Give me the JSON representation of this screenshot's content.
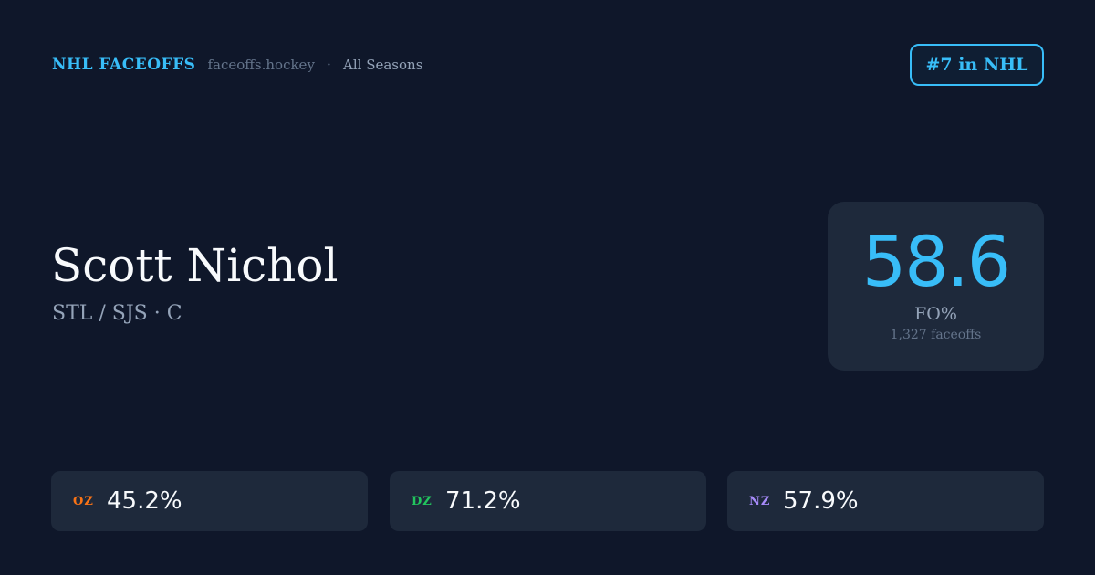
{
  "header": {
    "brand": "NHL FACEOFFS",
    "site": "faceoffs.hockey",
    "separator": "·",
    "season": "All Seasons",
    "rank": "#7 in NHL"
  },
  "player": {
    "name": "Scott Nichol",
    "subtitle": "STL / SJS · C"
  },
  "summary": {
    "value": "58.6",
    "label": "FO%",
    "count": "1,327 faceoffs"
  },
  "zones": [
    {
      "label": "OZ",
      "value": "45.2%",
      "color": "#f97316"
    },
    {
      "label": "DZ",
      "value": "71.2%",
      "color": "#22c55e"
    },
    {
      "label": "NZ",
      "value": "57.9%",
      "color": "#a78bfa"
    }
  ]
}
